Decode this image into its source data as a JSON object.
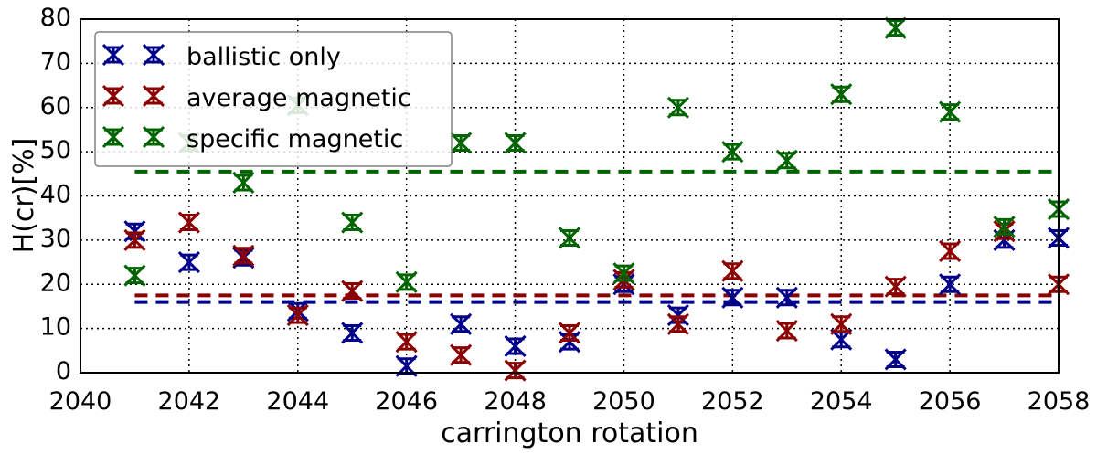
{
  "chart_data": {
    "type": "scatter",
    "title": "",
    "xlabel": "carrington rotation",
    "ylabel": "H(cr)[%]",
    "xlim": [
      2040,
      2058
    ],
    "ylim": [
      0,
      80
    ],
    "grid": true,
    "legend_position": "top-left",
    "x_ticks": [
      "2040",
      "2042",
      "2044",
      "2046",
      "2048",
      "2050",
      "2052",
      "2054",
      "2056",
      "2058"
    ],
    "y_ticks": [
      "0",
      "10",
      "20",
      "30",
      "40",
      "50",
      "60",
      "70",
      "80"
    ],
    "x": [
      2041,
      2042,
      2043,
      2044,
      2045,
      2046,
      2047,
      2048,
      2049,
      2050,
      2051,
      2052,
      2053,
      2054,
      2055,
      2056,
      2057,
      2058
    ],
    "series": [
      {
        "name": "ballistic only",
        "color": "#00008b",
        "mean": 16,
        "values": [
          32,
          25,
          26,
          14,
          9,
          1.5,
          11,
          6,
          7,
          20,
          13,
          17,
          17,
          7.5,
          3,
          20,
          30,
          30.5
        ]
      },
      {
        "name": "average magnetic",
        "color": "#8b0000",
        "mean": 17.5,
        "values": [
          30,
          34,
          26.5,
          13,
          18.5,
          7,
          4,
          0.5,
          9,
          21,
          11,
          23,
          9.5,
          11,
          19.5,
          27.5,
          32,
          20
        ]
      },
      {
        "name": "specific magnetic",
        "color": "#006400",
        "mean": 45.5,
        "values": [
          22,
          52,
          43,
          60.5,
          34,
          20.5,
          52,
          52,
          30.5,
          22.5,
          60,
          50,
          48,
          63,
          78,
          59,
          33,
          37
        ]
      }
    ]
  }
}
